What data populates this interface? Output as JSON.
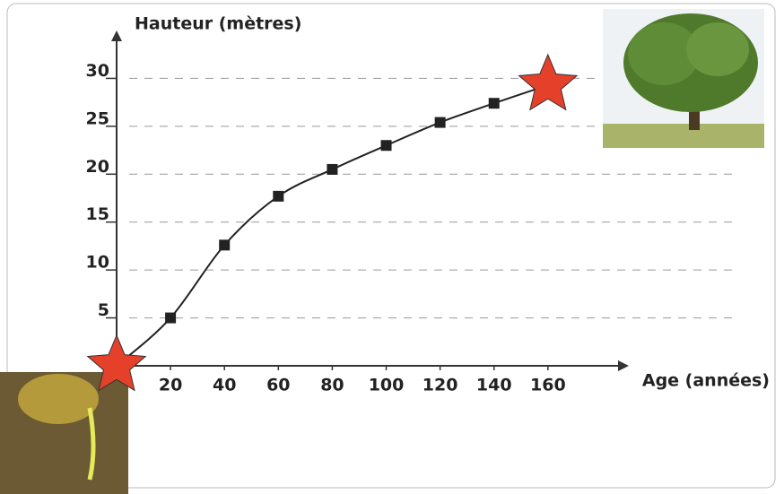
{
  "chart_data": {
    "type": "line",
    "y_label": "Hauteur (mètres)",
    "x_label": "Age (années)",
    "x": [
      0,
      20,
      40,
      60,
      80,
      100,
      120,
      140,
      160
    ],
    "series": [
      {
        "color": "#222222",
        "marker_color": "#222222",
        "end_color": "#e5412a",
        "values": [
          0,
          5,
          12.6,
          17.7,
          20.5,
          23,
          25.4,
          27.4,
          29.3
        ]
      }
    ],
    "xlim": [
      0,
      190
    ],
    "ylim": [
      0,
      35
    ],
    "xticks": [
      20,
      40,
      60,
      80,
      100,
      120,
      140,
      160
    ],
    "yticks": [
      5,
      10,
      15,
      20,
      25,
      30
    ],
    "grid": true
  }
}
